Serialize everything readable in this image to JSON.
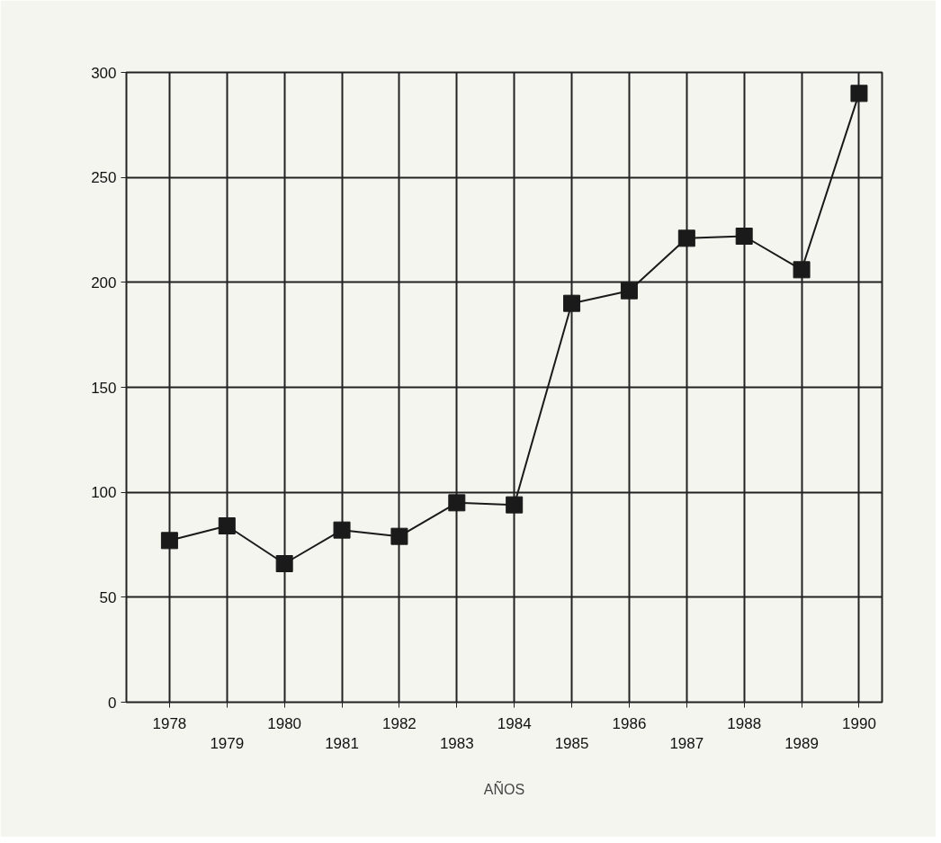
{
  "chart_data": {
    "type": "line",
    "xlabel": "AÑOS",
    "categories": [
      "1978",
      "1979",
      "1980",
      "1981",
      "1982",
      "1983",
      "1984",
      "1985",
      "1986",
      "1987",
      "1988",
      "1989",
      "1990"
    ],
    "series": [
      {
        "color": "#1a1a1a",
        "values": [
          77,
          84,
          66,
          82,
          79,
          95,
          94,
          190,
          196,
          221,
          222,
          206,
          290
        ]
      }
    ],
    "ylim": [
      0,
      300
    ],
    "yticks": [
      0,
      50,
      100,
      150,
      200,
      250,
      300
    ],
    "grid": true,
    "marker": "square",
    "line_style": "solid"
  }
}
